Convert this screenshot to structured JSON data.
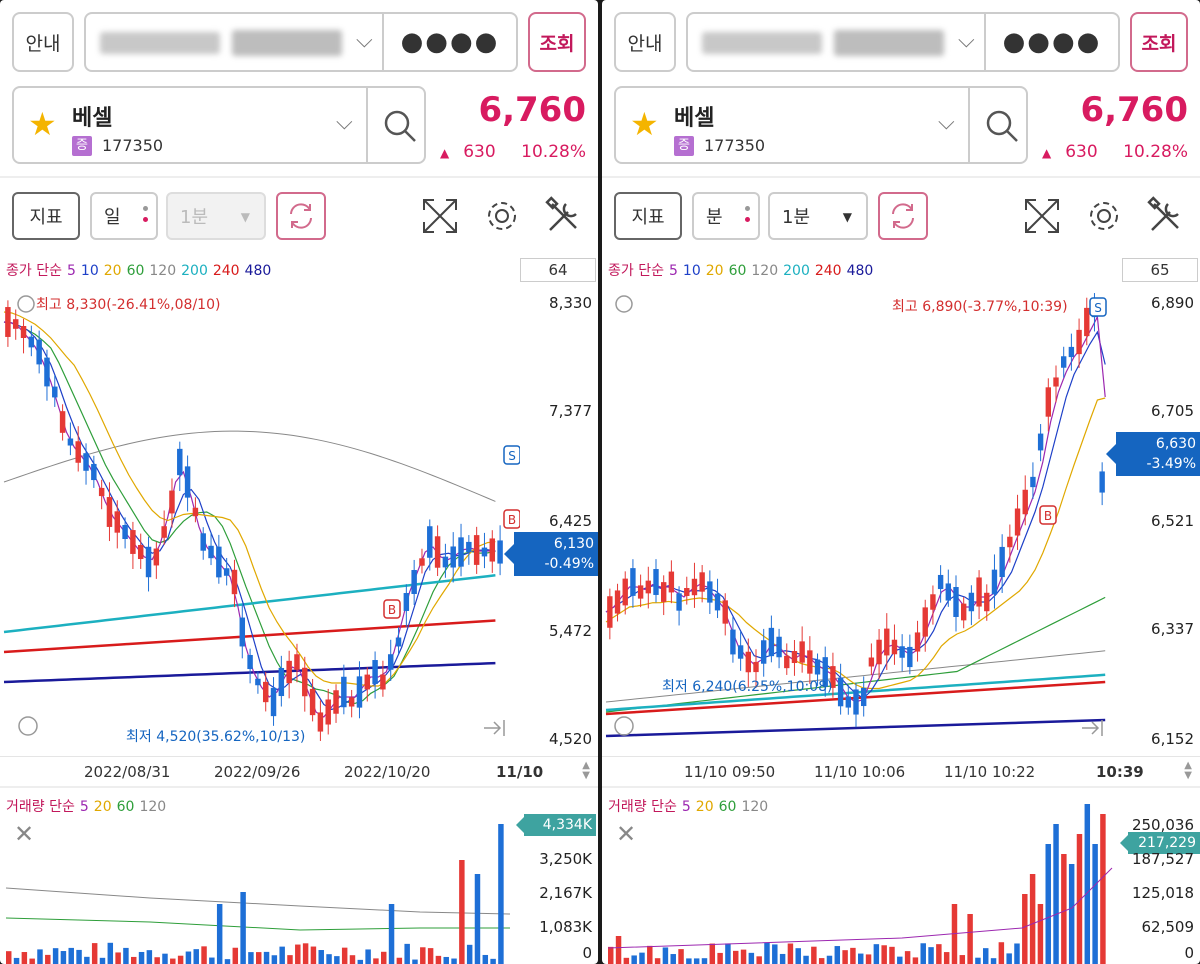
{
  "panels": [
    {
      "id": "left",
      "top": {
        "guide_label": "안내",
        "password_mask": "●●●●",
        "query_label": "조회"
      },
      "stock": {
        "name": "베셀",
        "market_badge": "증",
        "code": "177350",
        "price": "6,760",
        "change": "630",
        "change_pct": "10.28%"
      },
      "toolbar": {
        "indicator_label": "지표",
        "period_label": "일",
        "interval_label": "1분",
        "interval_enabled": false
      },
      "chart": {
        "legend_prefix": "종가 단순",
        "ma_periods": [
          "5",
          "10",
          "20",
          "60",
          "120",
          "200",
          "240",
          "480"
        ],
        "ma_colors": [
          "#9c27b0",
          "#1e40c8",
          "#e0a800",
          "#2e9e3a",
          "#888888",
          "#1cb0c0",
          "#d81b1b",
          "#1a1a9a"
        ],
        "count_box": "64",
        "y_labels": [
          "8,330",
          "7,377",
          "6,425",
          "5,472",
          "4,520"
        ],
        "current_price": "6,130",
        "current_pct": "-0.49%",
        "high_label": "최고 8,330(-26.41%,08/10)",
        "low_label": "최저 4,520(35.62%,10/13)",
        "buy_marker": "B",
        "sell_marker": "S",
        "x_labels": [
          "2022/08/31",
          "2022/09/26",
          "2022/10/20"
        ],
        "x_last": "11/10"
      },
      "volume": {
        "legend_prefix": "거래량 단순",
        "ma_periods": [
          "5",
          "20",
          "60",
          "120"
        ],
        "y_labels": [
          "3,250K",
          "2,167K",
          "1,083K",
          "0"
        ],
        "current": "4,334K"
      },
      "chart_data": {
        "type": "candlestick",
        "ylim": [
          4520,
          8330
        ],
        "high": 8330,
        "low": 4520,
        "last": 6130
      }
    },
    {
      "id": "right",
      "top": {
        "guide_label": "안내",
        "password_mask": "●●●●",
        "query_label": "조회"
      },
      "stock": {
        "name": "베셀",
        "market_badge": "증",
        "code": "177350",
        "price": "6,760",
        "change": "630",
        "change_pct": "10.28%"
      },
      "toolbar": {
        "indicator_label": "지표",
        "period_label": "분",
        "interval_label": "1분",
        "interval_enabled": true
      },
      "chart": {
        "legend_prefix": "종가 단순",
        "ma_periods": [
          "5",
          "10",
          "20",
          "60",
          "120",
          "200",
          "240",
          "480"
        ],
        "ma_colors": [
          "#9c27b0",
          "#1e40c8",
          "#e0a800",
          "#2e9e3a",
          "#888888",
          "#1cb0c0",
          "#d81b1b",
          "#1a1a9a"
        ],
        "count_box": "65",
        "y_labels": [
          "6,890",
          "6,705",
          "6,521",
          "6,337",
          "6,152"
        ],
        "current_price": "6,630",
        "current_pct": "-3.49%",
        "high_label": "최고 6,890(-3.77%,10:39)",
        "low_label": "최저 6,240(6.25%,10:08)",
        "buy_marker": "B",
        "sell_marker": "S",
        "x_labels": [
          "11/10 09:50",
          "11/10 10:06",
          "11/10 10:22"
        ],
        "x_last": "10:39"
      },
      "volume": {
        "legend_prefix": "거래량 단순",
        "ma_periods": [
          "5",
          "20",
          "60",
          "120"
        ],
        "y_labels": [
          "250,036",
          "187,527",
          "125,018",
          "62,509",
          "0"
        ],
        "current": "217,229"
      },
      "chart_data": {
        "type": "candlestick",
        "ylim": [
          6152,
          6890
        ],
        "high": 6890,
        "low": 6240,
        "last": 6630
      }
    }
  ]
}
